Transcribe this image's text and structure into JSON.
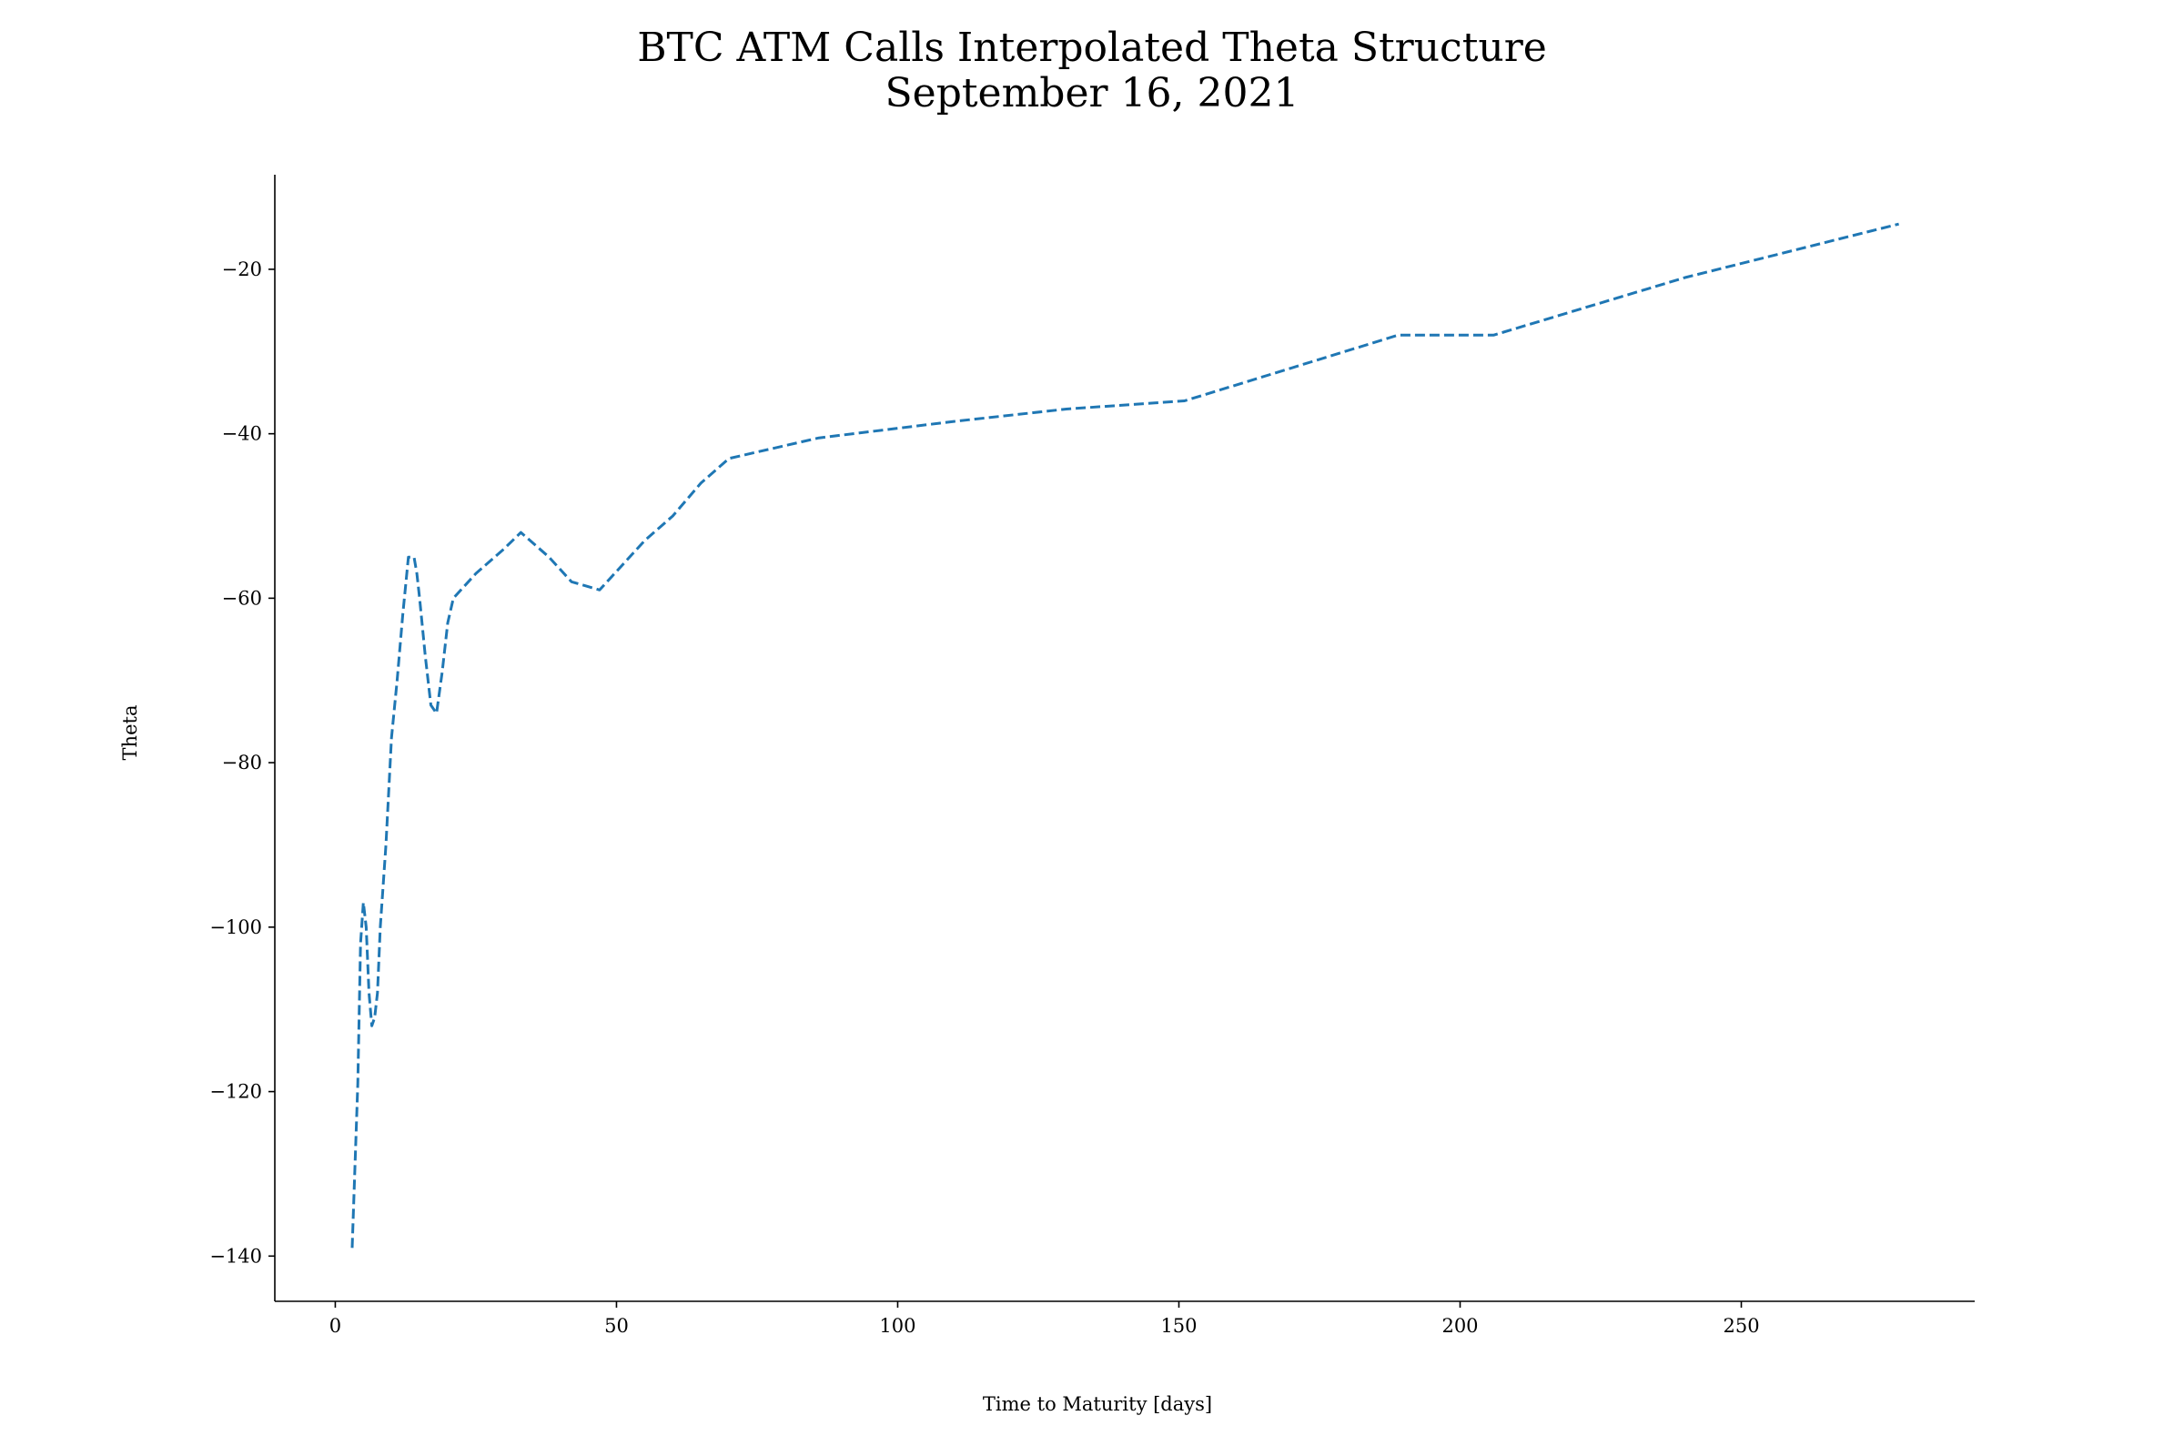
{
  "chart_data": {
    "type": "line",
    "title": "BTC ATM Calls Interpolated Theta Structure",
    "subtitle": "September 16, 2021",
    "xlabel": "Time to Maturity [days]",
    "ylabel": "Theta",
    "xlim": [
      -10.75,
      291.5
    ],
    "ylim": [
      -145.5,
      -8.5
    ],
    "xticks": [
      0,
      50,
      100,
      150,
      200,
      250
    ],
    "yticks": [
      -140,
      -120,
      -100,
      -80,
      -60,
      -40,
      -20
    ],
    "xtick_labels": [
      "0",
      "50",
      "100",
      "150",
      "200",
      "250"
    ],
    "ytick_labels": [
      "−140",
      "−120",
      "−100",
      "−80",
      "−60",
      "−40",
      "−20"
    ],
    "grid": false,
    "spines": [
      "left",
      "bottom"
    ],
    "series": [
      {
        "line_style": "dashed",
        "color": "#1f77b4",
        "x": [
          3,
          4,
          4.5,
          5,
          5.5,
          6,
          6.5,
          7,
          7.5,
          8,
          8.5,
          9,
          10,
          11,
          12,
          13,
          14,
          14.5,
          15,
          16,
          17,
          18,
          19,
          20,
          21,
          25,
          30,
          33,
          38,
          42,
          47,
          55,
          60,
          65,
          70,
          86,
          110,
          130,
          151,
          170,
          189,
          206,
          240,
          278
        ],
        "y": [
          -139,
          -119,
          -102,
          -97,
          -100,
          -108,
          -112,
          -111,
          -108,
          -100,
          -95,
          -90,
          -77,
          -70,
          -62,
          -55,
          -55,
          -57,
          -60,
          -67,
          -73,
          -74,
          -69,
          -63,
          -60,
          -57,
          -54,
          -52,
          -55,
          -58,
          -59,
          -53,
          -50,
          -46,
          -43,
          -40.5,
          -38.5,
          -37,
          -36,
          -32,
          -28,
          -28,
          -21,
          -14.5
        ]
      }
    ]
  }
}
